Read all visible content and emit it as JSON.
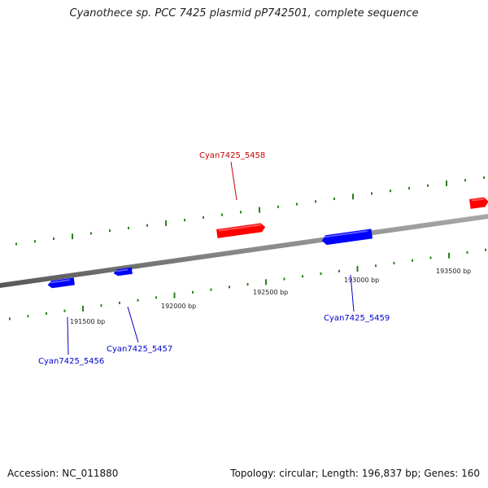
{
  "title": "Cyanothece sp. PCC 7425 plasmid pP742501, complete sequence",
  "footer": {
    "accession": "Accession: NC_011880",
    "summary": "Topology: circular; Length: 196,837 bp; Genes: 160"
  },
  "colors": {
    "forward_gene": "#ff0000",
    "reverse_gene": "#0000ff",
    "tick": "#2e7d20",
    "backbone": "#888888"
  },
  "position_labels": [
    "191500 bp",
    "192000 bp",
    "192500 bp",
    "193000 bp",
    "193500 bp"
  ],
  "genes": [
    {
      "label": "Cyan7425_5456",
      "strand": "reverse"
    },
    {
      "label": "Cyan7425_5457",
      "strand": "reverse"
    },
    {
      "label": "Cyan7425_5458",
      "strand": "forward"
    },
    {
      "label": "Cyan7425_5459",
      "strand": "reverse"
    },
    {
      "label": "",
      "strand": "forward"
    }
  ]
}
